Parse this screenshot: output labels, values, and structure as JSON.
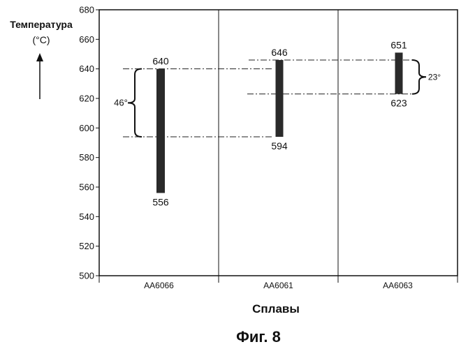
{
  "chart_data": {
    "type": "range",
    "ylabel_line1": "Температура",
    "ylabel_line2": "(°C)",
    "xlabel": "Сплавы",
    "caption": "Фиг. 8",
    "ylim": [
      500,
      680
    ],
    "yticks": [
      500,
      520,
      540,
      560,
      580,
      600,
      620,
      640,
      660,
      680
    ],
    "categories": [
      "AA6066",
      "AA6061",
      "AA6063"
    ],
    "ranges": [
      {
        "category": "AA6066",
        "low": 556,
        "high": 640,
        "low_label": "556",
        "high_label": "640"
      },
      {
        "category": "AA6061",
        "low": 594,
        "high": 646,
        "low_label": "594",
        "high_label": "646"
      },
      {
        "category": "AA6063",
        "low": 623,
        "high": 651,
        "low_label": "623",
        "high_label": "651"
      }
    ],
    "annotations": [
      {
        "text": "46°",
        "from": 594,
        "to": 640
      },
      {
        "text": "23°",
        "from": 623,
        "to": 646
      }
    ]
  }
}
